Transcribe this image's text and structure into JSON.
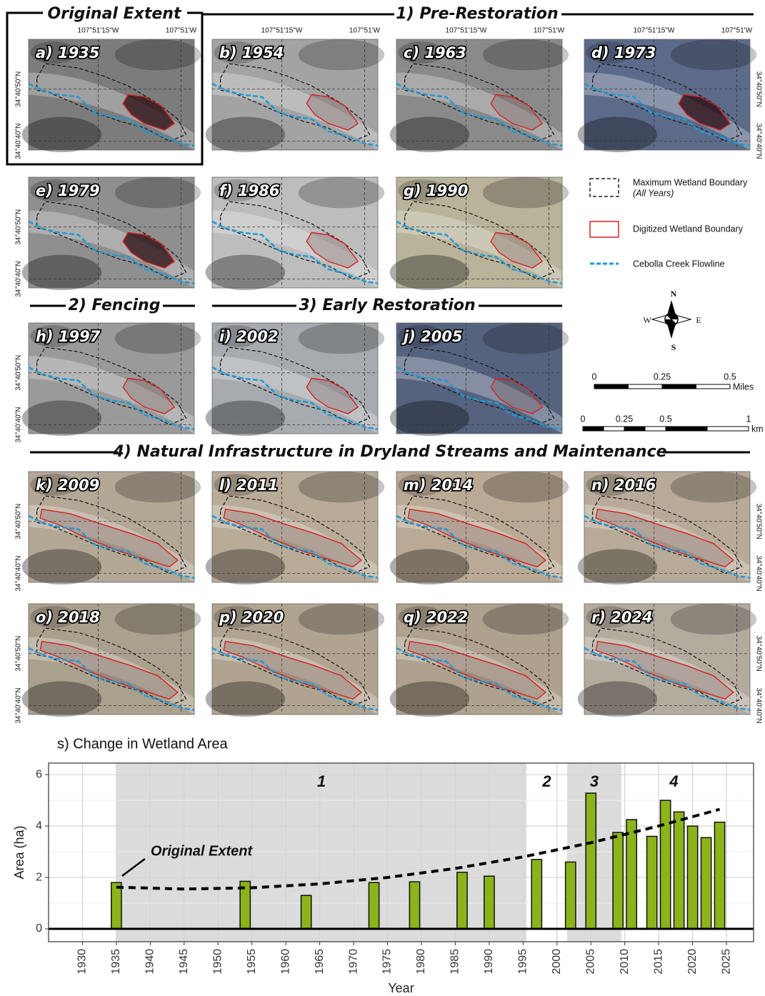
{
  "headers": {
    "original": "Original Extent",
    "pre": "1) Pre-Restoration",
    "fencing": "2) Fencing",
    "early": "3) Early Restoration",
    "natural": "4) Natural Infrastructure in Dryland Streams and Maintenance"
  },
  "coordinates": {
    "lon": [
      "107°51'15\"W",
      "107°51'W"
    ],
    "lat": [
      "34°40'50\"N",
      "34°40'40\"N"
    ]
  },
  "panels": [
    "a) 1935",
    "b) 1954",
    "c) 1963",
    "d) 1973",
    "e) 1979",
    "f) 1986",
    "g) 1990",
    "h) 1997",
    "i) 2002",
    "j) 2005",
    "k) 2009",
    "l) 2011",
    "m) 2014",
    "n) 2016",
    "o) 2018",
    "p) 2020",
    "q) 2022",
    "r) 2024"
  ],
  "legend": {
    "max": "Maximum Wetland Boundary",
    "max_note": "(All Years)",
    "digitized": "Digitized Wetland Boundary",
    "flowline": "Cebolla Creek Flowline"
  },
  "compass": {
    "n": "N",
    "w": "W",
    "e": "E",
    "s": "S"
  },
  "scale": {
    "miles": {
      "ticks": [
        0,
        0.25,
        0.5
      ],
      "unit": "Miles"
    },
    "km": {
      "ticks": [
        0,
        0.25,
        0.5,
        1
      ],
      "unit": "km"
    }
  },
  "chart_data": {
    "type": "bar",
    "title": "s) Change in Wetland Area",
    "x_label": "Year",
    "y_label": "Area (ha)",
    "x": [
      1935,
      1954,
      1963,
      1973,
      1979,
      1986,
      1990,
      1997,
      2002,
      2005,
      2009,
      2011,
      2014,
      2016,
      2018,
      2020,
      2022,
      2024
    ],
    "values": [
      1.8,
      1.85,
      1.3,
      1.8,
      1.83,
      2.2,
      2.05,
      2.7,
      2.6,
      5.28,
      3.75,
      4.25,
      3.6,
      5.0,
      4.55,
      4.0,
      3.55,
      4.15
    ],
    "color": "#8cb31a",
    "xlim": [
      1925,
      2029
    ],
    "ylim": [
      -0.5,
      6.45
    ],
    "xticks": [
      1930,
      1935,
      1940,
      1945,
      1950,
      1955,
      1960,
      1965,
      1970,
      1975,
      1980,
      1985,
      1990,
      1995,
      2000,
      2005,
      2010,
      2015,
      2020,
      2025
    ],
    "yticks": [
      0,
      2,
      4,
      6
    ],
    "grid": true,
    "phases": [
      {
        "label": "1",
        "start": 1935,
        "end": 1995.5,
        "shaded": true
      },
      {
        "label": "2",
        "start": 1995.5,
        "end": 2001.5,
        "shaded": false
      },
      {
        "label": "3",
        "start": 2001.5,
        "end": 2009.5,
        "shaded": true
      },
      {
        "label": "4",
        "start": 2009.5,
        "end": 2025,
        "shaded": false
      }
    ],
    "trend": {
      "x": [
        1935,
        1945,
        1955,
        1965,
        1975,
        1985,
        1995,
        2005,
        2015,
        2024
      ],
      "values": [
        1.62,
        1.55,
        1.6,
        1.75,
        2.0,
        2.35,
        2.8,
        3.35,
        4.0,
        4.65
      ]
    },
    "annotation": {
      "text": "Original Extent",
      "x": 1935
    }
  }
}
